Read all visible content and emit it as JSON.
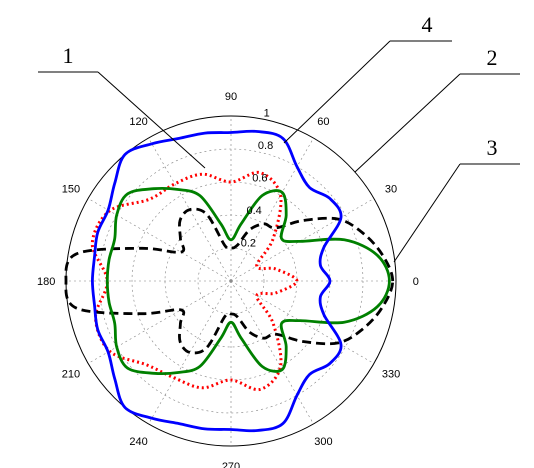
{
  "chart_data": {
    "type": "line",
    "projection": "polar",
    "angle_unit": "degrees",
    "r_range": [
      0,
      1
    ],
    "r_ticks": [
      "0.2",
      "0.4",
      "0.6",
      "0.8",
      "1"
    ],
    "angle_ticks": [
      "0",
      "30",
      "60",
      "90",
      "120",
      "150",
      "180",
      "210",
      "240",
      "270",
      "300",
      "330"
    ],
    "grid": true,
    "legend": "none",
    "callouts": [
      "1",
      "2",
      "3",
      "4"
    ],
    "series": [
      {
        "callout": "1",
        "color": "#ff0000",
        "style": "dotted",
        "points": [
          [
            0,
            0.4
          ],
          [
            15,
            0.28
          ],
          [
            30,
            0.18
          ],
          [
            45,
            0.36
          ],
          [
            60,
            0.6
          ],
          [
            75,
            0.68
          ],
          [
            90,
            0.6
          ],
          [
            105,
            0.67
          ],
          [
            120,
            0.68
          ],
          [
            135,
            0.7
          ],
          [
            150,
            0.85
          ],
          [
            165,
            0.87
          ],
          [
            180,
            0.75
          ],
          [
            195,
            0.85
          ],
          [
            210,
            0.85
          ],
          [
            225,
            0.72
          ],
          [
            240,
            0.68
          ],
          [
            255,
            0.67
          ],
          [
            270,
            0.6
          ],
          [
            285,
            0.68
          ],
          [
            300,
            0.6
          ],
          [
            315,
            0.36
          ],
          [
            330,
            0.18
          ],
          [
            345,
            0.28
          ],
          [
            360,
            0.4
          ]
        ]
      },
      {
        "callout": "2",
        "color": "#000000",
        "style": "dashed",
        "points": [
          [
            0,
            0.98
          ],
          [
            10,
            0.93
          ],
          [
            20,
            0.85
          ],
          [
            30,
            0.75
          ],
          [
            40,
            0.57
          ],
          [
            50,
            0.42
          ],
          [
            60,
            0.4
          ],
          [
            70,
            0.33
          ],
          [
            80,
            0.22
          ],
          [
            90,
            0.2
          ],
          [
            100,
            0.22
          ],
          [
            110,
            0.43
          ],
          [
            120,
            0.5
          ],
          [
            130,
            0.48
          ],
          [
            140,
            0.4
          ],
          [
            150,
            0.35
          ],
          [
            160,
            0.58
          ],
          [
            170,
            0.95
          ],
          [
            180,
            1.0
          ],
          [
            190,
            0.95
          ],
          [
            200,
            0.58
          ],
          [
            210,
            0.35
          ],
          [
            220,
            0.4
          ],
          [
            230,
            0.48
          ],
          [
            240,
            0.5
          ],
          [
            250,
            0.43
          ],
          [
            260,
            0.22
          ],
          [
            270,
            0.2
          ],
          [
            280,
            0.22
          ],
          [
            290,
            0.33
          ],
          [
            300,
            0.4
          ],
          [
            310,
            0.42
          ],
          [
            320,
            0.57
          ],
          [
            330,
            0.75
          ],
          [
            340,
            0.85
          ],
          [
            350,
            0.93
          ],
          [
            360,
            0.98
          ]
        ]
      },
      {
        "callout": "3",
        "color": "#008000",
        "style": "solid",
        "points": [
          [
            0,
            0.96
          ],
          [
            10,
            0.9
          ],
          [
            20,
            0.73
          ],
          [
            30,
            0.48
          ],
          [
            40,
            0.4
          ],
          [
            50,
            0.52
          ],
          [
            60,
            0.62
          ],
          [
            70,
            0.55
          ],
          [
            80,
            0.35
          ],
          [
            90,
            0.25
          ],
          [
            100,
            0.35
          ],
          [
            110,
            0.55
          ],
          [
            120,
            0.64
          ],
          [
            130,
            0.73
          ],
          [
            140,
            0.82
          ],
          [
            150,
            0.8
          ],
          [
            160,
            0.75
          ],
          [
            170,
            0.75
          ],
          [
            180,
            0.75
          ],
          [
            190,
            0.75
          ],
          [
            200,
            0.75
          ],
          [
            210,
            0.8
          ],
          [
            220,
            0.82
          ],
          [
            230,
            0.73
          ],
          [
            240,
            0.64
          ],
          [
            250,
            0.55
          ],
          [
            260,
            0.35
          ],
          [
            270,
            0.25
          ],
          [
            280,
            0.35
          ],
          [
            290,
            0.55
          ],
          [
            300,
            0.62
          ],
          [
            310,
            0.52
          ],
          [
            320,
            0.4
          ],
          [
            330,
            0.48
          ],
          [
            340,
            0.73
          ],
          [
            350,
            0.9
          ],
          [
            360,
            0.96
          ]
        ]
      },
      {
        "callout": "4",
        "color": "#0000ff",
        "style": "solid",
        "points": [
          [
            0,
            0.6
          ],
          [
            10,
            0.55
          ],
          [
            20,
            0.6
          ],
          [
            30,
            0.77
          ],
          [
            40,
            0.78
          ],
          [
            50,
            0.74
          ],
          [
            60,
            0.8
          ],
          [
            70,
            0.92
          ],
          [
            80,
            0.92
          ],
          [
            90,
            0.9
          ],
          [
            100,
            0.91
          ],
          [
            110,
            0.92
          ],
          [
            120,
            0.96
          ],
          [
            130,
            1.0
          ],
          [
            140,
            0.92
          ],
          [
            150,
            0.86
          ],
          [
            160,
            0.86
          ],
          [
            170,
            0.84
          ],
          [
            180,
            0.84
          ],
          [
            190,
            0.84
          ],
          [
            200,
            0.86
          ],
          [
            210,
            0.86
          ],
          [
            220,
            0.92
          ],
          [
            230,
            1.0
          ],
          [
            240,
            0.96
          ],
          [
            250,
            0.92
          ],
          [
            260,
            0.91
          ],
          [
            270,
            0.9
          ],
          [
            280,
            0.92
          ],
          [
            290,
            0.92
          ],
          [
            300,
            0.8
          ],
          [
            310,
            0.74
          ],
          [
            320,
            0.78
          ],
          [
            330,
            0.77
          ],
          [
            340,
            0.6
          ],
          [
            350,
            0.55
          ],
          [
            360,
            0.6
          ]
        ]
      }
    ]
  }
}
